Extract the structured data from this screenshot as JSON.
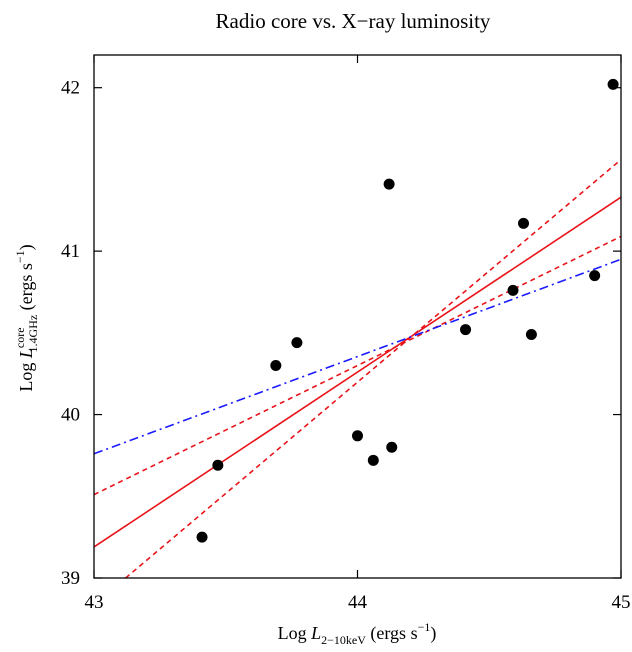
{
  "chart_data": {
    "type": "scatter",
    "title": "Radio core vs. X−ray luminosity",
    "xlabel": {
      "prefix": "Log ",
      "symbol": "L",
      "subscript": "2−10keV",
      "units_open": " (ergs s",
      "units_exp": "−1",
      "units_close": ")"
    },
    "ylabel": {
      "prefix": "Log ",
      "symbol": "L",
      "superscript": "core",
      "subscript": "1.4GHz",
      "units_open": " (ergs s",
      "units_exp": "−1",
      "units_close": ")"
    },
    "xlim": [
      43,
      45
    ],
    "ylim": [
      39,
      42.2
    ],
    "xticks": [
      43,
      44,
      45
    ],
    "yticks": [
      39,
      40,
      41,
      42
    ],
    "grid": false,
    "points": [
      {
        "x": 43.41,
        "y": 39.25
      },
      {
        "x": 43.47,
        "y": 39.69
      },
      {
        "x": 43.69,
        "y": 40.3
      },
      {
        "x": 43.77,
        "y": 40.44
      },
      {
        "x": 44.0,
        "y": 39.87
      },
      {
        "x": 44.06,
        "y": 39.72
      },
      {
        "x": 44.12,
        "y": 41.41
      },
      {
        "x": 44.13,
        "y": 39.8
      },
      {
        "x": 44.41,
        "y": 40.52
      },
      {
        "x": 44.59,
        "y": 40.76
      },
      {
        "x": 44.63,
        "y": 41.17
      },
      {
        "x": 44.66,
        "y": 40.49
      },
      {
        "x": 44.9,
        "y": 40.85
      },
      {
        "x": 44.97,
        "y": 42.02
      }
    ],
    "lines": [
      {
        "style": "solid",
        "color": "#e8141a",
        "x": [
          43,
          45
        ],
        "y": [
          39.19,
          41.33
        ]
      },
      {
        "style": "dashed",
        "color": "#e8141a",
        "x": [
          43,
          45
        ],
        "y": [
          39.51,
          41.09
        ]
      },
      {
        "style": "dashed",
        "color": "#e8141a",
        "x": [
          43.12,
          45
        ],
        "y": [
          39.0,
          41.56
        ]
      },
      {
        "style": "dashdot",
        "color": "#1a1aff",
        "x": [
          43,
          45
        ],
        "y": [
          39.76,
          40.95
        ]
      }
    ]
  }
}
